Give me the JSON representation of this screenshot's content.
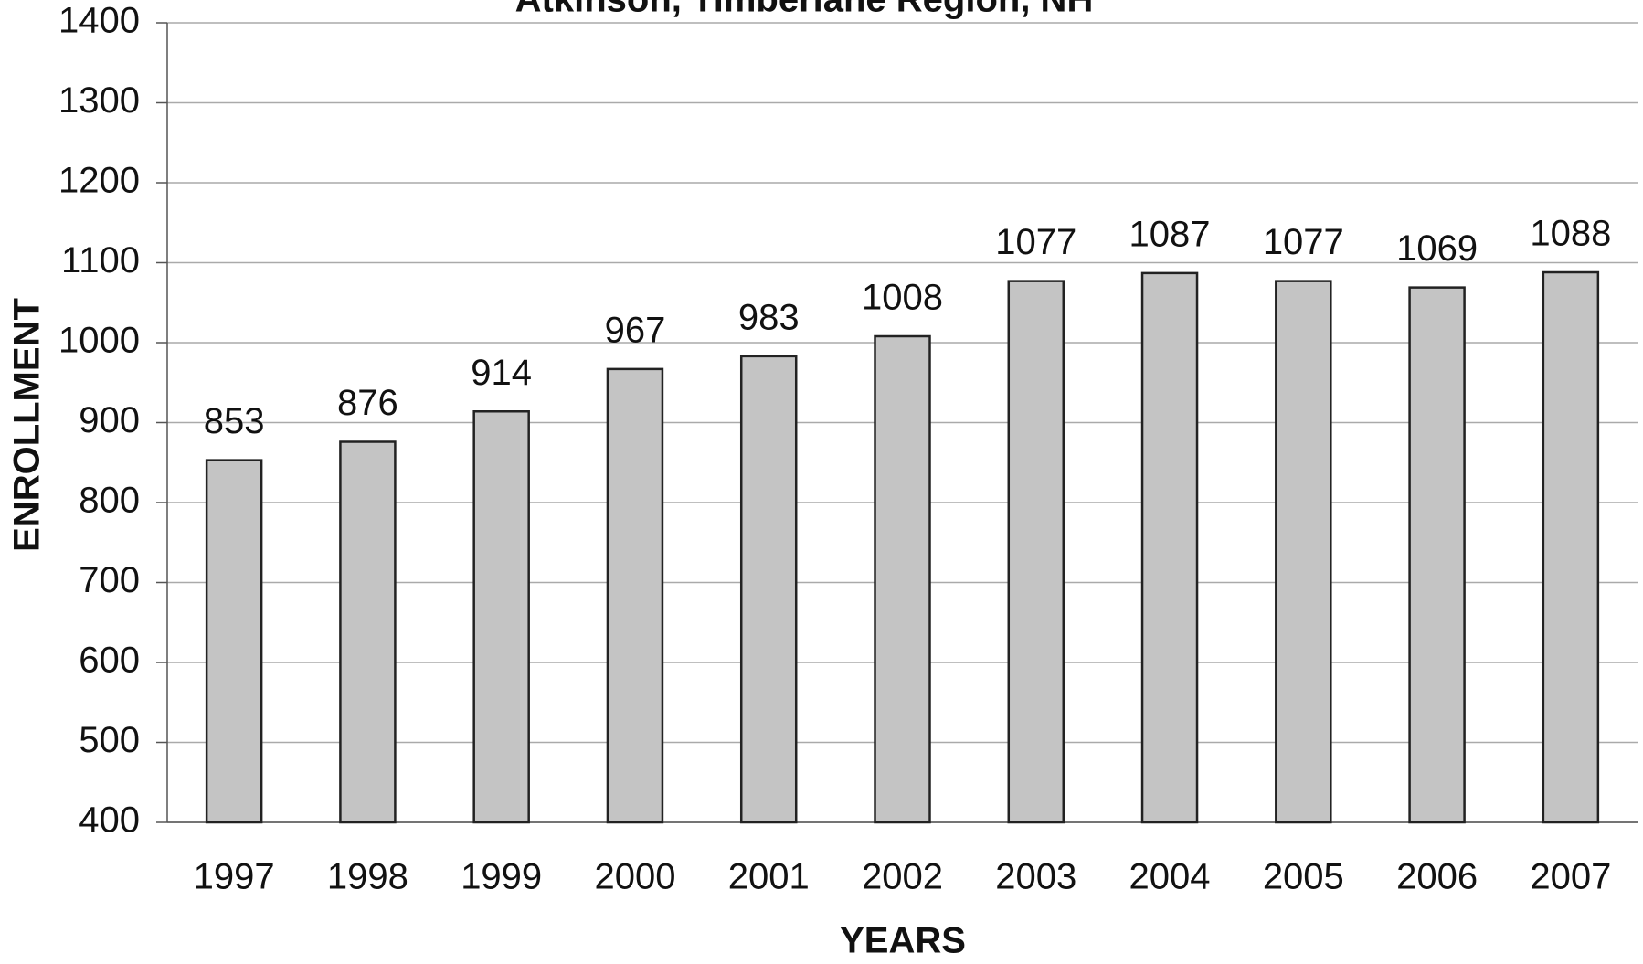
{
  "chart_data": {
    "type": "bar",
    "title": "Atkinson, Timberlane Region, NH",
    "x_label": "YEARS",
    "y_label": "ENROLLMENT",
    "categories": [
      "1997",
      "1998",
      "1999",
      "2000",
      "2001",
      "2002",
      "2003",
      "2004",
      "2005",
      "2006",
      "2007"
    ],
    "values": [
      853,
      876,
      914,
      967,
      983,
      1008,
      1077,
      1087,
      1077,
      1069,
      1088
    ],
    "color": "#c4c4c4",
    "ylim": [
      400,
      1400
    ],
    "yticks": [
      400,
      500,
      600,
      700,
      800,
      900,
      1000,
      1100,
      1200,
      1300,
      1400
    ],
    "grid": true
  }
}
